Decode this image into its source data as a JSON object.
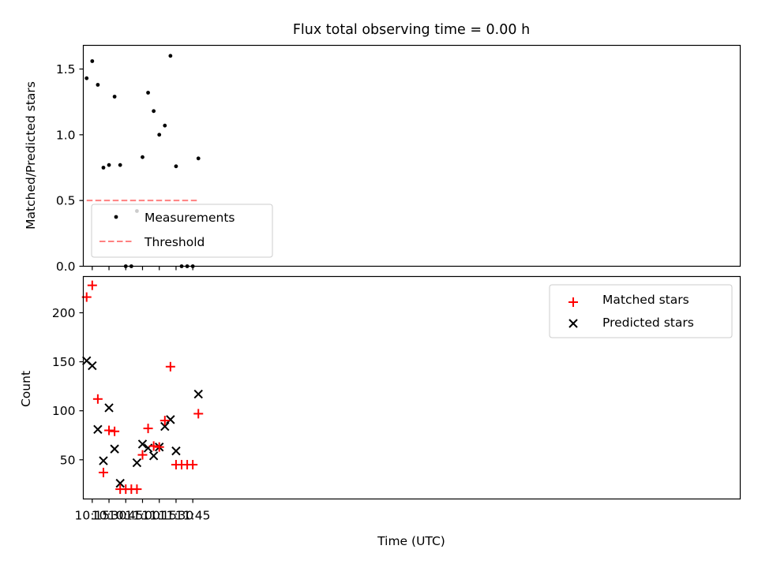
{
  "chart_data": [
    {
      "type": "scatter",
      "title": "Flux total observing time = 0.00 h",
      "xlabel": "",
      "ylabel": "Matched/Predicted stars",
      "xlim": [
        607,
        1195
      ],
      "ylim": [
        0,
        1.68
      ],
      "yticks": [
        0.0,
        0.5,
        1.0,
        1.5
      ],
      "ytick_labels": [
        "0.0",
        "0.5",
        "1.0",
        "1.5"
      ],
      "xticks": [
        615,
        630,
        645,
        660,
        675,
        690,
        705
      ],
      "series": [
        {
          "name": "Measurements",
          "color": "#000000",
          "marker": "dot",
          "x": [
            610,
            615,
            620,
            625,
            630,
            635,
            640,
            645,
            650,
            655,
            660,
            665,
            670,
            675,
            680,
            685,
            690,
            695,
            700,
            705,
            710
          ],
          "y": [
            1.43,
            1.56,
            1.38,
            0.75,
            0.77,
            1.29,
            0.77,
            0.0,
            0.0,
            0.42,
            0.83,
            1.32,
            1.18,
            1.0,
            1.07,
            1.6,
            0.76,
            0.0,
            0.0,
            0.0,
            0.82
          ]
        },
        {
          "name": "Threshold",
          "color": "#ff8080",
          "line": "dashed",
          "x": [
            610,
            710
          ],
          "y": [
            0.5,
            0.5
          ]
        }
      ],
      "legend": {
        "position": "lower-left",
        "entries": [
          "Measurements",
          "Threshold"
        ]
      }
    },
    {
      "type": "scatter",
      "title": "",
      "xlabel": "Time (UTC)",
      "ylabel": "Count",
      "xlim": [
        607,
        1195
      ],
      "ylim": [
        10,
        237
      ],
      "yticks": [
        50,
        100,
        150,
        200
      ],
      "ytick_labels": [
        "50",
        "100",
        "150",
        "200"
      ],
      "xticks": [
        615,
        630,
        645,
        660,
        675,
        690,
        705
      ],
      "xtick_labels": [
        "10:15",
        "10:30",
        "10:45",
        "11:00",
        "11:15",
        "11:30",
        "11:45"
      ],
      "series": [
        {
          "name": "Matched stars",
          "color": "#ff0000",
          "marker": "plus",
          "x": [
            610,
            615,
            620,
            625,
            630,
            635,
            640,
            645,
            650,
            655,
            660,
            665,
            670,
            675,
            680,
            685,
            690,
            695,
            700,
            705,
            710
          ],
          "y": [
            216,
            228,
            112,
            37,
            80,
            79,
            20,
            20,
            20,
            20,
            55,
            82,
            64,
            63,
            90,
            145,
            45,
            45,
            45,
            45,
            97
          ]
        },
        {
          "name": "Predicted stars",
          "color": "#000000",
          "marker": "x",
          "x": [
            610,
            615,
            620,
            625,
            630,
            635,
            640,
            655,
            660,
            665,
            670,
            675,
            680,
            685,
            690,
            710
          ],
          "y": [
            151,
            146,
            81,
            49,
            103,
            61,
            26,
            47,
            66,
            62,
            54,
            63,
            84,
            91,
            59,
            117
          ]
        }
      ],
      "legend": {
        "position": "upper-right",
        "entries": [
          "Matched stars",
          "Predicted stars"
        ]
      }
    }
  ]
}
